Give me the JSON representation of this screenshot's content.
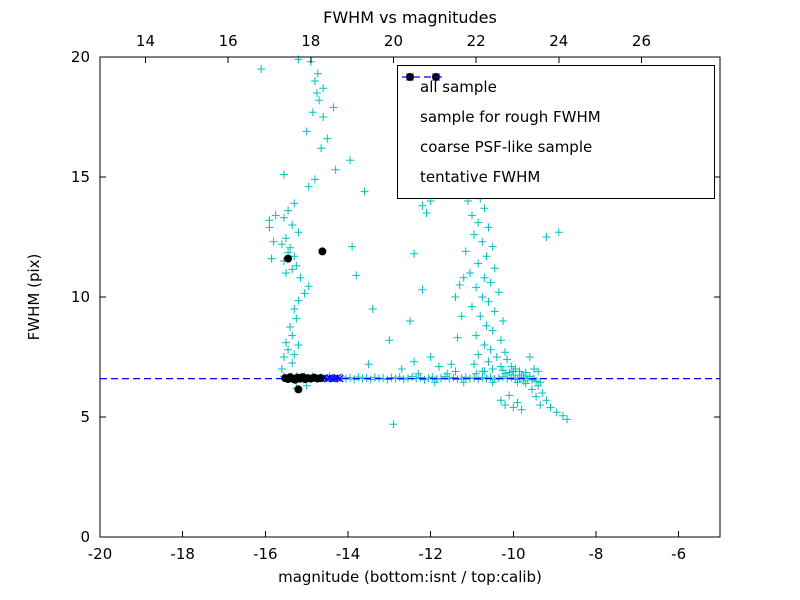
{
  "chart_data": {
    "type": "scatter",
    "title": "FWHM vs magnitudes",
    "xlabel": "magnitude (bottom:isnt / top:calib)",
    "ylabel": "FWHM (pix)",
    "xlim": [
      -20,
      -5
    ],
    "ylim": [
      0,
      20
    ],
    "x2lim": [
      12.9,
      27.9
    ],
    "x_ticks": [
      -20,
      -18,
      -16,
      -14,
      -12,
      -10,
      -8,
      -6
    ],
    "x2_ticks": [
      14,
      16,
      18,
      20,
      22,
      24,
      26
    ],
    "y_ticks": [
      0,
      5,
      10,
      15,
      20
    ],
    "grid": false,
    "legend_position": "upper right",
    "colors": {
      "all_sample": "#00bfbf",
      "rough_fwhm": "#0000ff",
      "psf_like": "#000000",
      "tentative": "#0000ff"
    },
    "tentative_fwhm": 6.6,
    "series": [
      {
        "name": "all sample",
        "marker": "plus",
        "color": "#00bfbf",
        "points": [
          [
            -16.1,
            19.5
          ],
          [
            -15.2,
            19.9
          ],
          [
            -14.9,
            19.8
          ],
          [
            -14.73,
            19.3
          ],
          [
            -14.8,
            19.0
          ],
          [
            -14.6,
            18.7
          ],
          [
            -14.75,
            18.5
          ],
          [
            -14.7,
            18.2
          ],
          [
            -14.35,
            17.9
          ],
          [
            -14.85,
            17.7
          ],
          [
            -14.6,
            17.5
          ],
          [
            -15.0,
            16.9
          ],
          [
            -14.5,
            16.6
          ],
          [
            -14.65,
            16.2
          ],
          [
            -13.95,
            15.7
          ],
          [
            -15.55,
            15.1
          ],
          [
            -14.3,
            15.3
          ],
          [
            -14.8,
            14.9
          ],
          [
            -14.95,
            14.6
          ],
          [
            -13.6,
            14.4
          ],
          [
            -15.9,
            13.2
          ],
          [
            -15.75,
            13.4
          ],
          [
            -15.3,
            13.9
          ],
          [
            -15.45,
            13.6
          ],
          [
            -15.55,
            13.3
          ],
          [
            -15.35,
            13.0
          ],
          [
            -15.9,
            12.9
          ],
          [
            -15.2,
            12.7
          ],
          [
            -15.5,
            12.45
          ],
          [
            -15.8,
            12.3
          ],
          [
            -15.6,
            12.2
          ],
          [
            -15.4,
            12.05
          ],
          [
            -15.45,
            11.85
          ],
          [
            -15.3,
            11.7
          ],
          [
            -15.85,
            11.6
          ],
          [
            -15.55,
            11.5
          ],
          [
            -15.25,
            11.3
          ],
          [
            -15.35,
            11.15
          ],
          [
            -15.5,
            11.0
          ],
          [
            -15.15,
            10.8
          ],
          [
            -14.95,
            10.45
          ],
          [
            -15.05,
            10.15
          ],
          [
            -15.2,
            9.85
          ],
          [
            -15.3,
            9.5
          ],
          [
            -15.25,
            9.1
          ],
          [
            -15.4,
            8.75
          ],
          [
            -15.35,
            8.4
          ],
          [
            -15.5,
            8.1
          ],
          [
            -15.45,
            7.8
          ],
          [
            -15.55,
            7.5
          ],
          [
            -15.35,
            7.25
          ],
          [
            -15.6,
            7.0
          ],
          [
            -15.3,
            7.6
          ],
          [
            -15.2,
            8.0
          ],
          [
            -15.25,
            6.2
          ],
          [
            -15.0,
            6.3
          ],
          [
            -13.4,
            9.5
          ],
          [
            -13.0,
            8.2
          ],
          [
            -13.5,
            7.2
          ],
          [
            -12.5,
            9.0
          ],
          [
            -12.2,
            10.3
          ],
          [
            -12.4,
            11.8
          ],
          [
            -13.8,
            10.9
          ],
          [
            -13.9,
            12.1
          ],
          [
            -12.0,
            14.0
          ],
          [
            -12.2,
            13.8
          ],
          [
            -11.9,
            14.3
          ],
          [
            -12.1,
            13.5
          ],
          [
            -12.4,
            7.3
          ],
          [
            -11.8,
            7.1
          ],
          [
            -12.0,
            7.5
          ],
          [
            -11.5,
            7.2
          ],
          [
            -12.7,
            7.0
          ],
          [
            -12.9,
            4.7
          ],
          [
            -15.55,
            6.7
          ],
          [
            -15.45,
            6.6
          ],
          [
            -15.35,
            6.65
          ],
          [
            -15.25,
            6.7
          ],
          [
            -15.15,
            6.6
          ],
          [
            -15.05,
            6.68
          ],
          [
            -14.95,
            6.62
          ],
          [
            -14.85,
            6.7
          ],
          [
            -14.75,
            6.6
          ],
          [
            -14.65,
            6.65
          ],
          [
            -14.55,
            6.6
          ],
          [
            -14.45,
            6.68
          ],
          [
            -14.35,
            6.62
          ],
          [
            -14.25,
            6.6
          ],
          [
            -14.15,
            6.66
          ],
          [
            -14.05,
            6.6
          ],
          [
            -13.95,
            6.64
          ],
          [
            -13.85,
            6.58
          ],
          [
            -13.75,
            6.66
          ],
          [
            -13.65,
            6.6
          ],
          [
            -13.55,
            6.63
          ],
          [
            -13.45,
            6.57
          ],
          [
            -13.35,
            6.65
          ],
          [
            -13.25,
            6.6
          ],
          [
            -13.15,
            6.62
          ],
          [
            -13.05,
            6.56
          ],
          [
            -12.95,
            6.64
          ],
          [
            -12.85,
            6.6
          ],
          [
            -12.75,
            6.66
          ],
          [
            -12.65,
            6.58
          ],
          [
            -12.55,
            6.62
          ],
          [
            -12.45,
            6.68
          ],
          [
            -12.35,
            6.6
          ],
          [
            -12.25,
            6.64
          ],
          [
            -12.15,
            6.55
          ],
          [
            -12.05,
            6.62
          ],
          [
            -11.95,
            6.66
          ],
          [
            -11.85,
            6.58
          ],
          [
            -11.75,
            6.62
          ],
          [
            -11.65,
            6.68
          ],
          [
            -11.55,
            6.6
          ],
          [
            -11.45,
            6.64
          ],
          [
            -11.35,
            6.57
          ],
          [
            -11.25,
            6.62
          ],
          [
            -11.15,
            6.66
          ],
          [
            -11.05,
            6.6
          ],
          [
            -10.95,
            6.63
          ],
          [
            -10.85,
            6.57
          ],
          [
            -10.75,
            6.64
          ],
          [
            -10.65,
            6.6
          ],
          [
            -10.55,
            6.66
          ],
          [
            -10.45,
            6.58
          ],
          [
            -10.35,
            6.62
          ],
          [
            -10.25,
            6.67
          ],
          [
            -10.15,
            6.6
          ],
          [
            -10.05,
            6.63
          ],
          [
            -9.95,
            6.57
          ],
          [
            -9.85,
            6.62
          ],
          [
            -9.75,
            6.66
          ],
          [
            -9.65,
            6.6
          ],
          [
            -9.55,
            6.55
          ],
          [
            -9.45,
            6.5
          ],
          [
            -9.35,
            6.45
          ],
          [
            -12.3,
            6.8
          ],
          [
            -11.9,
            6.45
          ],
          [
            -11.6,
            6.8
          ],
          [
            -11.2,
            6.45
          ],
          [
            -10.9,
            6.8
          ],
          [
            -10.5,
            6.45
          ],
          [
            -10.2,
            6.8
          ],
          [
            -9.9,
            6.45
          ],
          [
            -11.4,
            6.9
          ],
          [
            -10.7,
            6.9
          ],
          [
            -10.0,
            6.9
          ],
          [
            -9.7,
            6.4
          ],
          [
            -10.9,
            14.4
          ],
          [
            -11.1,
            14.0
          ],
          [
            -10.8,
            14.1
          ],
          [
            -10.7,
            13.7
          ],
          [
            -11.0,
            13.4
          ],
          [
            -10.85,
            13.1
          ],
          [
            -10.6,
            12.9
          ],
          [
            -10.95,
            12.6
          ],
          [
            -10.75,
            12.3
          ],
          [
            -10.5,
            12.1
          ],
          [
            -11.15,
            11.9
          ],
          [
            -10.65,
            11.7
          ],
          [
            -10.85,
            11.4
          ],
          [
            -10.45,
            11.2
          ],
          [
            -11.05,
            11.0
          ],
          [
            -10.7,
            10.8
          ],
          [
            -10.55,
            10.6
          ],
          [
            -10.9,
            10.4
          ],
          [
            -10.35,
            10.2
          ],
          [
            -10.75,
            10.0
          ],
          [
            -10.6,
            9.8
          ],
          [
            -11.0,
            9.6
          ],
          [
            -10.45,
            9.4
          ],
          [
            -10.8,
            9.2
          ],
          [
            -10.25,
            9.0
          ],
          [
            -10.65,
            8.8
          ],
          [
            -10.5,
            8.6
          ],
          [
            -10.9,
            8.4
          ],
          [
            -10.3,
            8.2
          ],
          [
            -10.7,
            8.0
          ],
          [
            -10.55,
            7.8
          ],
          [
            -10.85,
            7.6
          ],
          [
            -10.2,
            7.7
          ],
          [
            -10.4,
            7.5
          ],
          [
            -10.6,
            7.3
          ],
          [
            -10.95,
            7.2
          ],
          [
            -10.15,
            7.4
          ],
          [
            -10.3,
            7.1
          ],
          [
            -10.5,
            7.0
          ],
          [
            -10.75,
            6.9
          ],
          [
            -10.05,
            7.1
          ],
          [
            -10.25,
            6.95
          ],
          [
            -9.95,
            7.0
          ],
          [
            -10.1,
            6.85
          ],
          [
            -9.85,
            6.9
          ],
          [
            -10.0,
            6.75
          ],
          [
            -9.9,
            6.6
          ],
          [
            -9.8,
            6.75
          ],
          [
            -9.7,
            6.85
          ],
          [
            -9.6,
            6.7
          ],
          [
            -9.75,
            6.5
          ],
          [
            -9.5,
            6.6
          ],
          [
            -9.4,
            6.3
          ],
          [
            -9.55,
            6.15
          ],
          [
            -9.3,
            6.0
          ],
          [
            -9.45,
            5.85
          ],
          [
            -9.2,
            5.7
          ],
          [
            -9.35,
            5.5
          ],
          [
            -9.1,
            5.4
          ],
          [
            -8.95,
            5.2
          ],
          [
            -8.8,
            5.05
          ],
          [
            -8.7,
            4.9
          ],
          [
            -10.1,
            5.9
          ],
          [
            -10.3,
            5.7
          ],
          [
            -9.9,
            5.6
          ],
          [
            -10.0,
            5.4
          ],
          [
            -10.2,
            5.5
          ],
          [
            -9.8,
            5.3
          ],
          [
            -11.3,
            10.5
          ],
          [
            -11.25,
            9.2
          ],
          [
            -11.35,
            8.3
          ],
          [
            -11.4,
            10.0
          ],
          [
            -11.2,
            10.8
          ],
          [
            -9.6,
            7.5
          ],
          [
            -9.5,
            7.0
          ],
          [
            -9.4,
            6.9
          ],
          [
            -9.2,
            12.5
          ],
          [
            -8.9,
            12.7
          ]
        ]
      },
      {
        "name": "sample for rough FWHM",
        "marker": "x",
        "color": "#0000ff",
        "points": [
          [
            -14.72,
            6.62
          ],
          [
            -14.65,
            6.6
          ],
          [
            -14.58,
            6.63
          ],
          [
            -14.5,
            6.6
          ],
          [
            -14.44,
            6.62
          ],
          [
            -14.38,
            6.6
          ],
          [
            -14.32,
            6.61
          ],
          [
            -14.26,
            6.63
          ],
          [
            -14.2,
            6.6
          ]
        ]
      },
      {
        "name": "coarse PSF-like sample",
        "marker": "circle",
        "color": "#000000",
        "points": [
          [
            -15.45,
            11.6
          ],
          [
            -14.62,
            11.9
          ],
          [
            -15.52,
            6.62
          ],
          [
            -15.45,
            6.58
          ],
          [
            -15.4,
            6.66
          ],
          [
            -15.34,
            6.6
          ],
          [
            -15.28,
            6.55
          ],
          [
            -15.22,
            6.64
          ],
          [
            -15.16,
            6.6
          ],
          [
            -15.1,
            6.66
          ],
          [
            -15.04,
            6.58
          ],
          [
            -14.98,
            6.62
          ],
          [
            -14.9,
            6.6
          ],
          [
            -14.82,
            6.64
          ],
          [
            -14.74,
            6.6
          ],
          [
            -14.66,
            6.62
          ],
          [
            -15.2,
            6.15
          ]
        ]
      },
      {
        "name": "tentative FWHM",
        "marker": "dashed-line",
        "color": "#0000ff",
        "y": 6.6,
        "points": []
      }
    ]
  }
}
